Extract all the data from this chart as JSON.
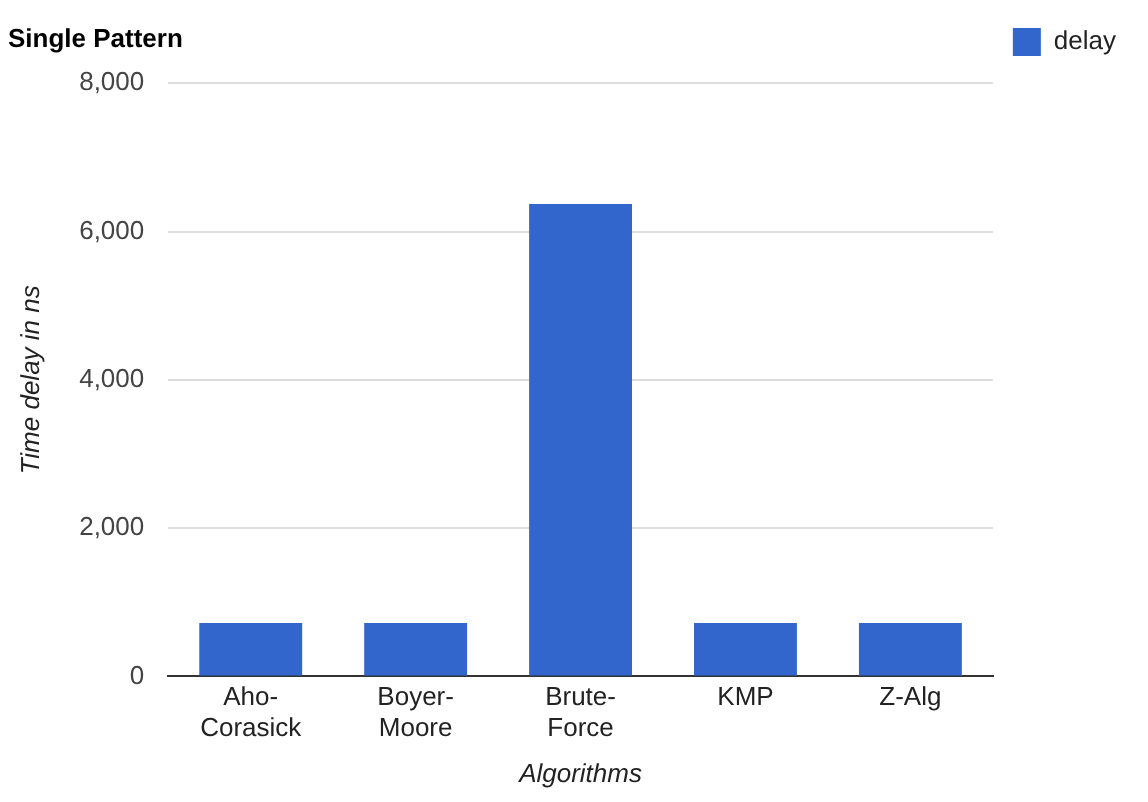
{
  "chart_data": {
    "type": "bar",
    "title": "Single Pattern",
    "xlabel": "Algorithms",
    "ylabel": "Time delay in ns",
    "categories": [
      "Aho-Corasick",
      "Boyer-Moore",
      "Brute-Force",
      "KMP",
      "Z-Alg"
    ],
    "series": [
      {
        "name": "delay",
        "color": "#3366cc",
        "values": [
          720,
          720,
          6370,
          720,
          720
        ]
      }
    ],
    "ylim": [
      0,
      8000
    ],
    "yticks": [
      0,
      {
        "value": 2000,
        "label": "2,000"
      },
      {
        "value": 4000,
        "label": "4,000"
      },
      {
        "value": 6000,
        "label": "6,000"
      },
      {
        "value": 8000,
        "label": "8,000"
      }
    ],
    "grid": "y",
    "legend": "right"
  }
}
